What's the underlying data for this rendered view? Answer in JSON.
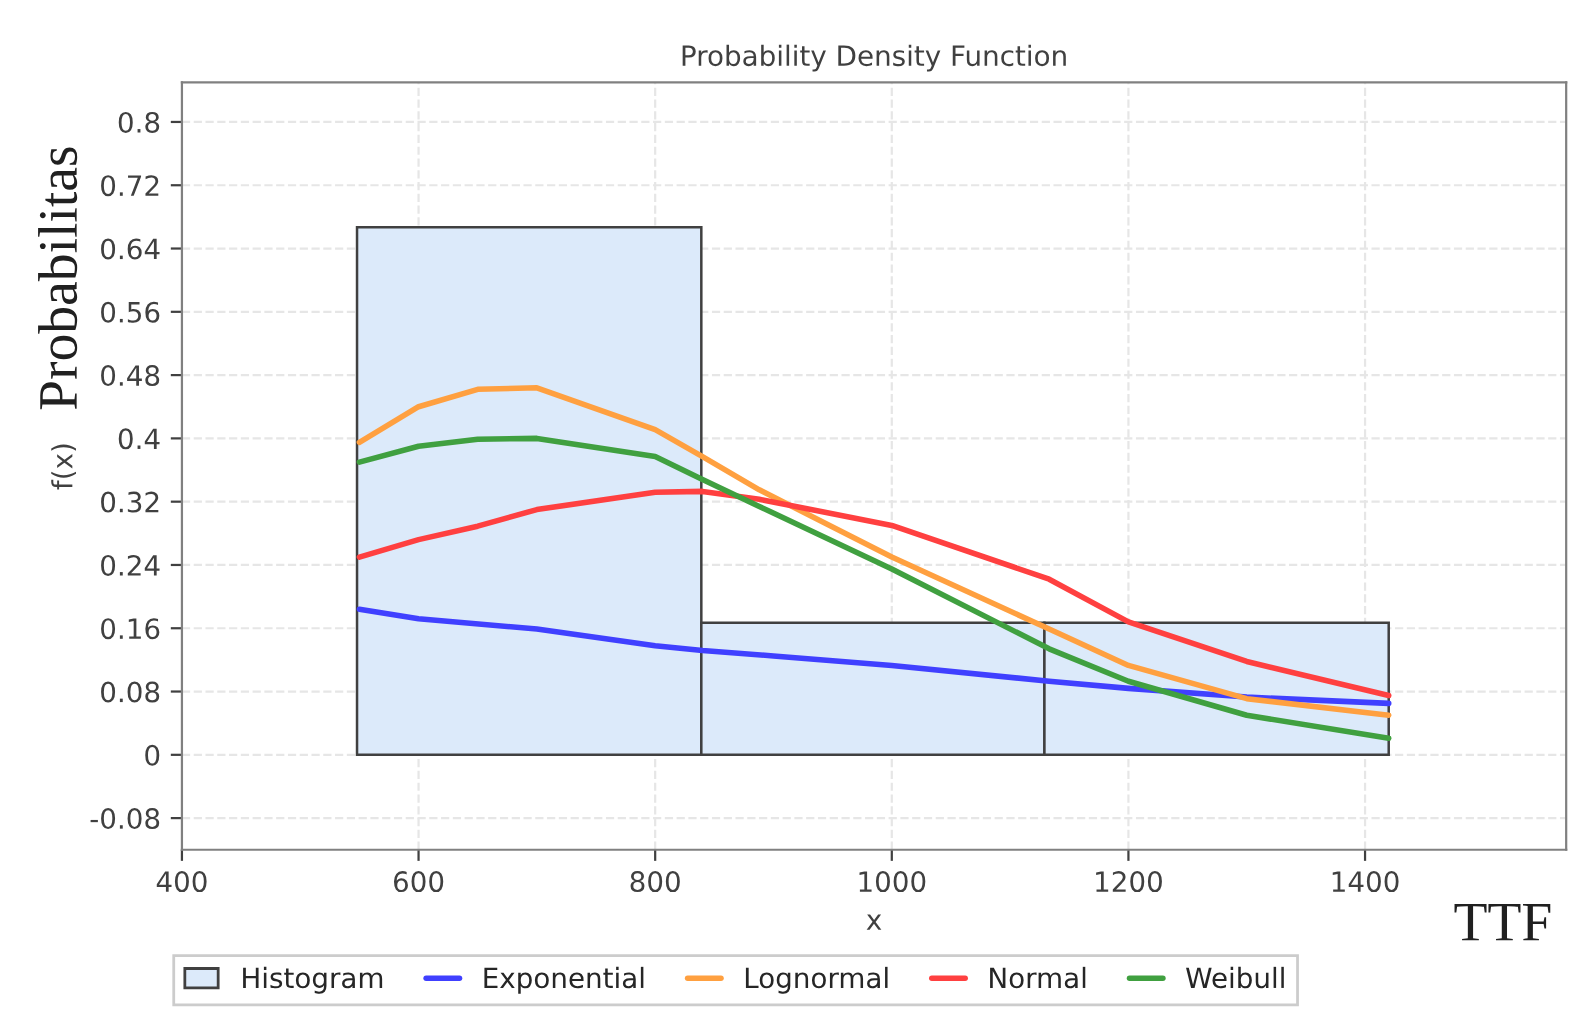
{
  "chart_data": {
    "type": "histogram",
    "title": "Probability Density Function",
    "xlabel": "x",
    "ylabel": "f(x)",
    "annotations": [
      "Probabilitas",
      "TTF"
    ],
    "series": [
      {
        "name": "Histogram",
        "color": "#dceafa",
        "bins": [
          548,
          839,
          1129,
          1420
        ],
        "values": [
          0.667,
          0.167,
          0.167
        ]
      },
      {
        "name": "Exponential",
        "type": "line",
        "color": "#4040ff",
        "x": [
          550,
          600,
          700,
          800,
          840,
          900,
          1000,
          1133,
          1200,
          1300,
          1420
        ],
        "values": [
          0.184,
          0.172,
          0.159,
          0.138,
          0.132,
          0.125,
          0.113,
          0.093,
          0.084,
          0.073,
          0.065
        ]
      },
      {
        "name": "Lognormal",
        "type": "line",
        "color": "#ffa040",
        "x": [
          550,
          600,
          650,
          700,
          800,
          840,
          888,
          1000,
          1133,
          1200,
          1300,
          1420
        ],
        "values": [
          0.395,
          0.44,
          0.462,
          0.464,
          0.411,
          0.377,
          0.335,
          0.25,
          0.159,
          0.113,
          0.071,
          0.05
        ]
      },
      {
        "name": "Normal",
        "type": "line",
        "color": "#ff4040",
        "x": [
          550,
          600,
          650,
          700,
          800,
          840,
          888,
          1000,
          1133,
          1200,
          1300,
          1420
        ],
        "values": [
          0.25,
          0.272,
          0.289,
          0.31,
          0.332,
          0.333,
          0.323,
          0.29,
          0.222,
          0.168,
          0.118,
          0.075
        ]
      },
      {
        "name": "Weibull",
        "type": "line",
        "color": "#40a040",
        "x": [
          550,
          600,
          650,
          700,
          800,
          840,
          888,
          1000,
          1133,
          1200,
          1300,
          1420
        ],
        "values": [
          0.37,
          0.39,
          0.399,
          0.4,
          0.377,
          0.348,
          0.314,
          0.235,
          0.134,
          0.093,
          0.05,
          0.021
        ]
      }
    ],
    "xlim": [
      400,
      1570
    ],
    "xticks": [
      400,
      600,
      800,
      1000,
      1200,
      1400
    ],
    "ylim": [
      -0.12,
      0.85
    ],
    "yticks": [
      -0.08,
      0,
      0.08,
      0.16,
      0.24,
      0.32,
      0.4,
      0.48,
      0.56,
      0.64,
      0.72,
      0.8
    ],
    "grid": true,
    "legend": "bottom",
    "line_style": "solid",
    "marker": "none"
  }
}
